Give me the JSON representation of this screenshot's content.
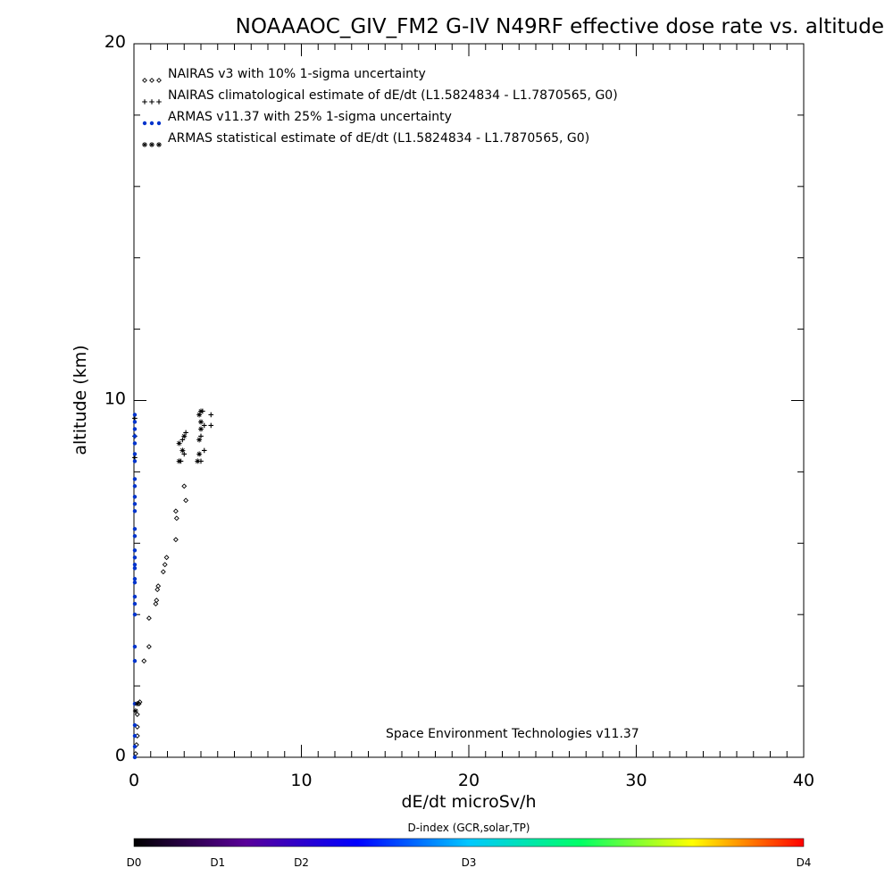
{
  "chart_data": {
    "type": "scatter",
    "title": "NOAAAOC_GIV_FM2 G-IV   N49RF  effective dose rate vs. altitude",
    "xlabel": "dE/dt microSv/h",
    "ylabel": "altitude (km)",
    "xlim": [
      0,
      40
    ],
    "ylim": [
      0,
      20
    ],
    "x_ticks": [
      "0",
      "10",
      "20",
      "30",
      "40"
    ],
    "y_ticks": [
      "0",
      "10",
      "20"
    ],
    "grid": false,
    "legend_placement": "top-left",
    "annotation": "Space Environment Technologies v11.37",
    "series": [
      {
        "name": "NAIRAS v3 with 10% 1-sigma uncertainty",
        "marker": "diamond",
        "color": "#000000",
        "points": [
          [
            0.1,
            0.1
          ],
          [
            0.15,
            0.35
          ],
          [
            0.2,
            0.6
          ],
          [
            0.2,
            0.85
          ],
          [
            0.2,
            1.2
          ],
          [
            0.3,
            1.5
          ],
          [
            0.35,
            1.55
          ],
          [
            0.6,
            2.7
          ],
          [
            0.9,
            3.1
          ],
          [
            0.9,
            3.9
          ],
          [
            1.3,
            4.3
          ],
          [
            1.35,
            4.4
          ],
          [
            1.4,
            4.7
          ],
          [
            1.45,
            4.8
          ],
          [
            1.75,
            5.2
          ],
          [
            1.85,
            5.4
          ],
          [
            1.95,
            5.6
          ],
          [
            2.5,
            6.1
          ],
          [
            2.55,
            6.7
          ],
          [
            2.5,
            6.9
          ],
          [
            3.1,
            7.2
          ],
          [
            3.0,
            7.6
          ]
        ]
      },
      {
        "name": "NAIRAS climatological estimate of dE/dt (L1.5824834 - L1.7870565, G0)",
        "marker": "plus",
        "color": "#000000",
        "points": [
          [
            2.8,
            8.3
          ],
          [
            3.0,
            8.5
          ],
          [
            2.9,
            8.9
          ],
          [
            3.1,
            9.1
          ],
          [
            4.0,
            8.3
          ],
          [
            4.2,
            8.6
          ],
          [
            4.0,
            9.0
          ],
          [
            4.2,
            9.3
          ],
          [
            4.6,
            9.3
          ],
          [
            4.6,
            9.6
          ],
          [
            4.1,
            9.7
          ],
          [
            0.05,
            8.4
          ],
          [
            0.05,
            9.0
          ],
          [
            0.05,
            9.5
          ]
        ]
      },
      {
        "name": "ARMAS v11.37 with 25% 1-sigma uncertainty",
        "marker": "dot",
        "color": "#0033cc",
        "points": [
          [
            0.05,
            0.0
          ],
          [
            0.05,
            0.3
          ],
          [
            0.05,
            0.6
          ],
          [
            0.05,
            0.9
          ],
          [
            0.05,
            1.5
          ],
          [
            0.05,
            2.7
          ],
          [
            0.05,
            3.1
          ],
          [
            0.05,
            4.0
          ],
          [
            0.05,
            4.3
          ],
          [
            0.05,
            4.5
          ],
          [
            0.05,
            4.9
          ],
          [
            0.05,
            5.0
          ],
          [
            0.05,
            5.3
          ],
          [
            0.05,
            5.4
          ],
          [
            0.05,
            5.6
          ],
          [
            0.05,
            5.8
          ],
          [
            0.05,
            6.2
          ],
          [
            0.05,
            6.4
          ],
          [
            0.05,
            6.9
          ],
          [
            0.05,
            7.1
          ],
          [
            0.05,
            7.3
          ],
          [
            0.05,
            7.6
          ],
          [
            0.05,
            7.8
          ],
          [
            0.05,
            8.3
          ],
          [
            0.05,
            8.5
          ],
          [
            0.05,
            8.8
          ],
          [
            0.05,
            9.0
          ],
          [
            0.05,
            9.2
          ],
          [
            0.05,
            9.4
          ],
          [
            0.05,
            9.6
          ]
        ]
      },
      {
        "name": "ARMAS statistical estimate of dE/dt (L1.5824834 - L1.7870565, G0)",
        "marker": "star",
        "color": "#000000",
        "points": [
          [
            0.1,
            1.3
          ],
          [
            0.2,
            1.5
          ],
          [
            2.7,
            8.3
          ],
          [
            2.9,
            8.6
          ],
          [
            2.7,
            8.8
          ],
          [
            3.0,
            9.0
          ],
          [
            3.8,
            8.3
          ],
          [
            3.9,
            8.5
          ],
          [
            4.0,
            9.2
          ],
          [
            4.0,
            9.4
          ],
          [
            3.9,
            9.6
          ],
          [
            4.0,
            9.7
          ],
          [
            3.9,
            8.9
          ]
        ]
      }
    ],
    "colorbar": {
      "label": "D-index (GCR,solar,TP)",
      "tick_labels": [
        "D0",
        "D1",
        "D2",
        "D3",
        "D4"
      ],
      "tick_values": [
        0,
        0.125,
        0.25,
        0.5,
        1.0
      ],
      "colors": [
        "#000000",
        "#5a0099",
        "#0000ff",
        "#00c8ff",
        "#00ff66",
        "#ffff00",
        "#ff0000"
      ]
    }
  }
}
